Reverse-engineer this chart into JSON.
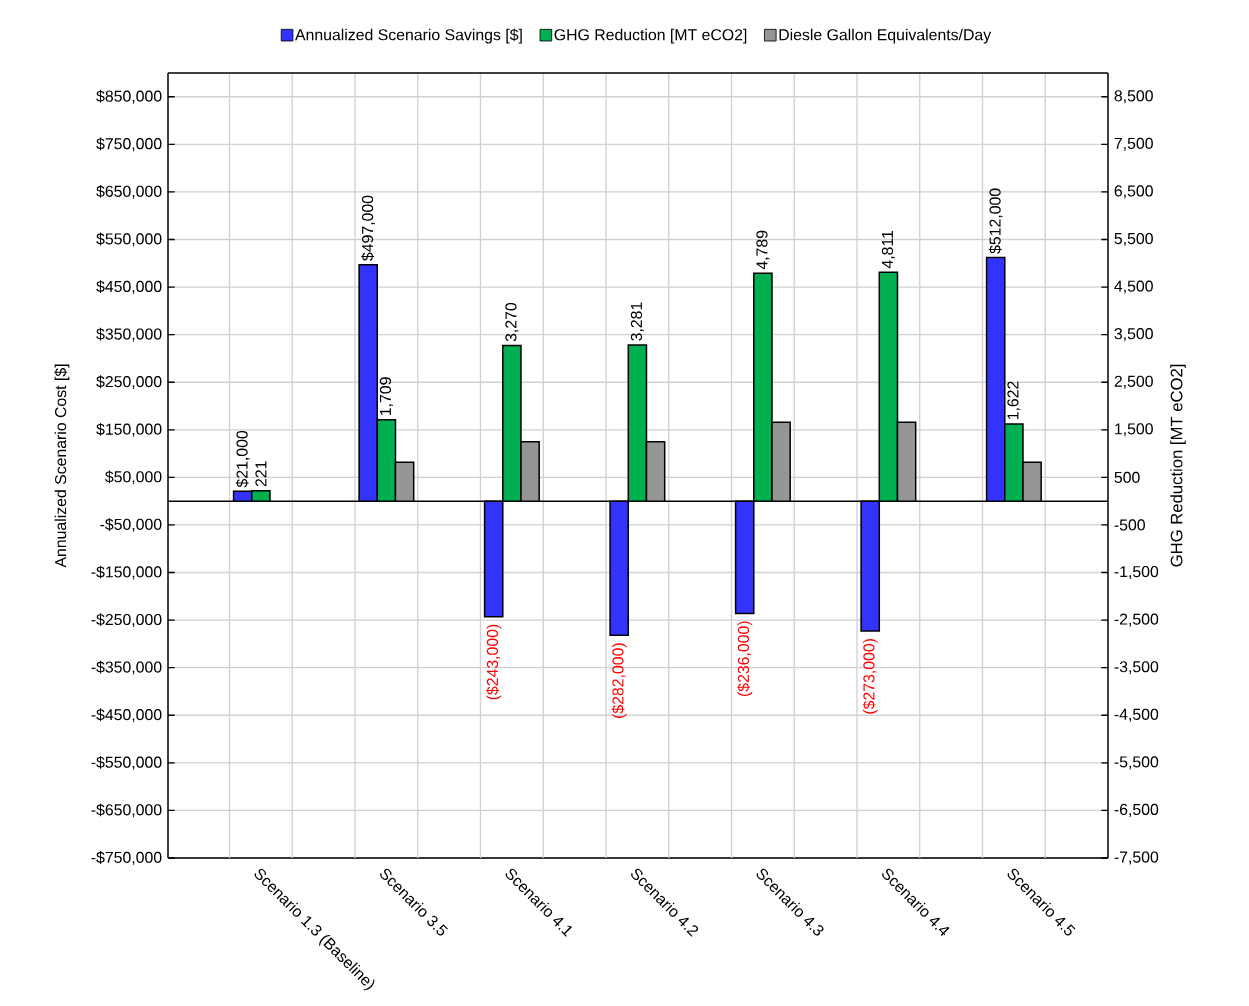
{
  "chart_data": {
    "type": "bar",
    "categories": [
      "Scenario 1.3 (Baseline)",
      "Scenario 3.5",
      "Scenario 4.1",
      "Scenario 4.2",
      "Scenario 4.3",
      "Scenario 4.4",
      "Scenario 4.5"
    ],
    "series": [
      {
        "name": "Annualized Scenario Savings [$]",
        "color": "#3333ff",
        "axis": "y",
        "values": [
          21000,
          497000,
          -243000,
          -282000,
          -236000,
          -273000,
          512000
        ],
        "value_labels": [
          "$21,000",
          "$497,000",
          "($243,000)",
          "($282,000)",
          "($236,000)",
          "($273,000)",
          "$512,000"
        ]
      },
      {
        "name": "GHG Reduction [MT eCO2]",
        "color": "#00b050",
        "axis": "y2",
        "values": [
          221,
          1709,
          3270,
          3281,
          4789,
          4811,
          1622
        ],
        "value_labels": [
          "221",
          "1,709",
          "3,270",
          "3,281",
          "4,789",
          "4,811",
          "1,622"
        ]
      },
      {
        "name": "Diesle Gallon Equivalents/Day",
        "color": "#969696",
        "axis": "y2",
        "values": [
          null,
          820,
          1250,
          1250,
          1660,
          1660,
          820
        ]
      }
    ],
    "ylabel": "Annualized Scenario Cost [$]",
    "y2label": "GHG Reduction [MT eCO2]",
    "ylim": [
      -750000,
      900000
    ],
    "yticks": [
      {
        "value": -750000,
        "label": "-$750,000"
      },
      {
        "value": -650000,
        "label": "-$650,000"
      },
      {
        "value": -550000,
        "label": "-$550,000"
      },
      {
        "value": -450000,
        "label": "-$450,000"
      },
      {
        "value": -350000,
        "label": "-$350,000"
      },
      {
        "value": -250000,
        "label": "-$250,000"
      },
      {
        "value": -150000,
        "label": "-$150,000"
      },
      {
        "value": -50000,
        "label": "-$50,000"
      },
      {
        "value": 50000,
        "label": "$50,000"
      },
      {
        "value": 150000,
        "label": "$150,000"
      },
      {
        "value": 250000,
        "label": "$250,000"
      },
      {
        "value": 350000,
        "label": "$350,000"
      },
      {
        "value": 450000,
        "label": "$450,000"
      },
      {
        "value": 550000,
        "label": "$550,000"
      },
      {
        "value": 650000,
        "label": "$650,000"
      },
      {
        "value": 750000,
        "label": "$750,000"
      },
      {
        "value": 850000,
        "label": "$850,000"
      }
    ],
    "y2lim": [
      -7500,
      9000
    ],
    "y2ticks": [
      {
        "value": -7500,
        "label": "-7,500"
      },
      {
        "value": -6500,
        "label": "-6,500"
      },
      {
        "value": -5500,
        "label": "-5,500"
      },
      {
        "value": -4500,
        "label": "-4,500"
      },
      {
        "value": -3500,
        "label": "-3,500"
      },
      {
        "value": -2500,
        "label": "-2,500"
      },
      {
        "value": -1500,
        "label": "-1,500"
      },
      {
        "value": -500,
        "label": "-500"
      },
      500,
      {
        "value": 1500,
        "label": "1,500"
      },
      {
        "value": 2500,
        "label": "2,500"
      },
      {
        "value": 3500,
        "label": "3,500"
      },
      {
        "value": 4500,
        "label": "4,500"
      },
      {
        "value": 5500,
        "label": "5,500"
      },
      {
        "value": 6500,
        "label": "6,500"
      },
      {
        "value": 7500,
        "label": "7,500"
      },
      {
        "value": 8500,
        "label": "8,500"
      }
    ],
    "grid": true,
    "legend": "top"
  }
}
